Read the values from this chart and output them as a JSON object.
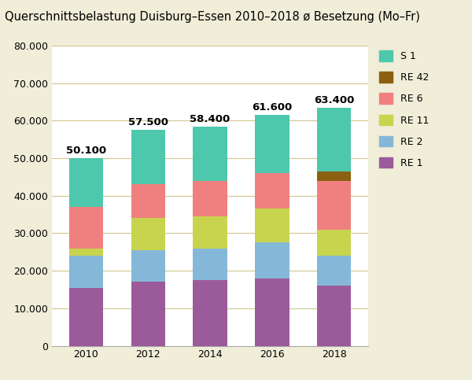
{
  "title": "Querschnittsbelastung Duisburg–Essen 2010–2018 ø Besetzung (Mo–Fr)",
  "years": [
    2010,
    2012,
    2014,
    2016,
    2018
  ],
  "totals_raw": [
    50100,
    57500,
    58400,
    61600,
    63400
  ],
  "totals_labels": [
    "50.100",
    "57.500",
    "58.400",
    "61.600",
    "63.400"
  ],
  "series": [
    {
      "label": "RE 1",
      "color": "#9B5B9B",
      "values": [
        15500,
        17000,
        17500,
        18000,
        16000
      ]
    },
    {
      "label": "RE 2",
      "color": "#85B8D8",
      "values": [
        8500,
        8500,
        8500,
        9500,
        8000
      ]
    },
    {
      "label": "RE 11",
      "color": "#C8D44E",
      "values": [
        2000,
        8500,
        8500,
        9000,
        7000
      ]
    },
    {
      "label": "RE 6",
      "color": "#F08080",
      "values": [
        11000,
        9000,
        9500,
        9500,
        13000
      ]
    },
    {
      "label": "RE 42",
      "color": "#8B6010",
      "values": [
        0,
        0,
        0,
        0,
        2500
      ]
    },
    {
      "label": "S 1",
      "color": "#4DC8AC",
      "values": [
        13100,
        14500,
        14400,
        15600,
        16900
      ]
    }
  ],
  "ylim": [
    0,
    80000
  ],
  "yticks": [
    0,
    10000,
    20000,
    30000,
    40000,
    50000,
    60000,
    70000,
    80000
  ],
  "ytick_labels": [
    "0",
    "10.000",
    "20.000",
    "30.000",
    "40.000",
    "50.000",
    "60.000",
    "70.000",
    "80.000"
  ],
  "outer_bg": "#F0EDD8",
  "plot_bg": "#FFFFFF",
  "grid_color": "#D0C890",
  "bar_width": 0.55,
  "title_fontsize": 10.5,
  "legend_fontsize": 9,
  "tick_fontsize": 9,
  "total_label_fontsize": 9.5
}
